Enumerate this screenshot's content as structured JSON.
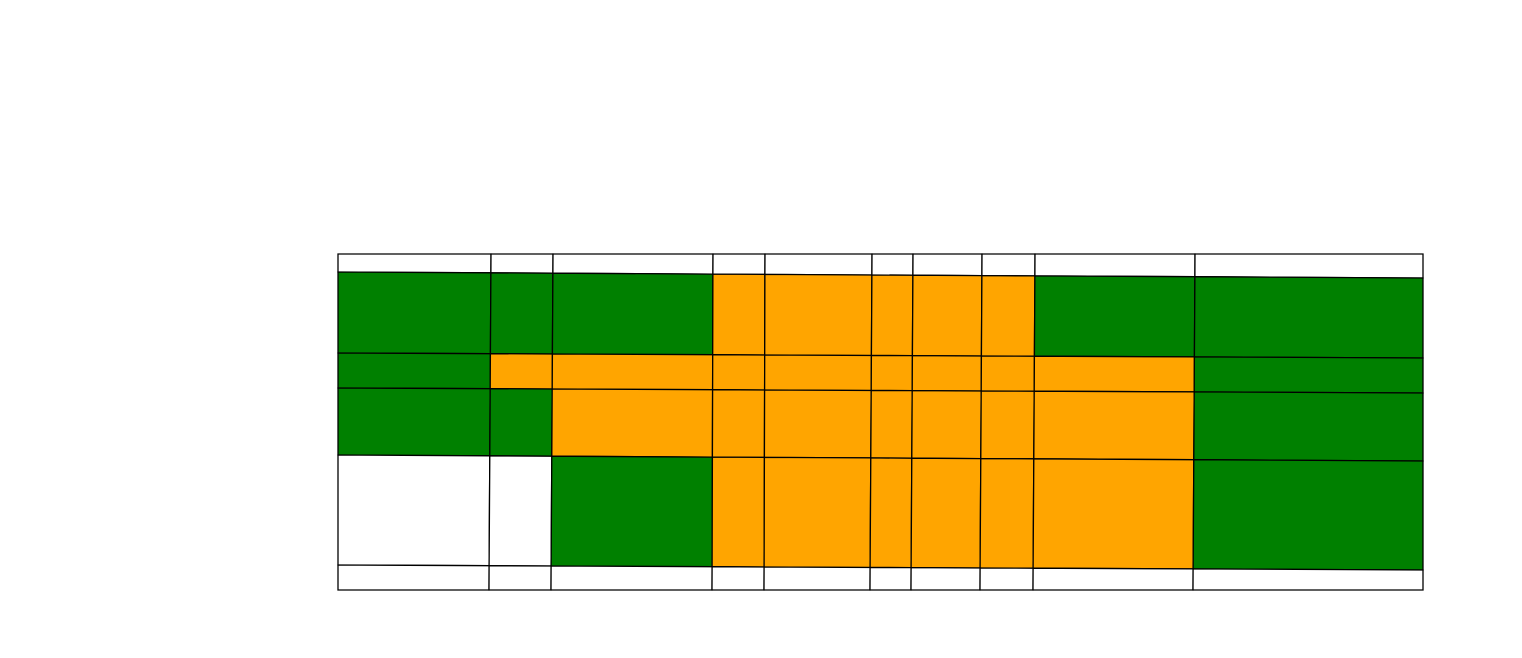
{
  "colors": {
    "green": "#008000",
    "orange": "#ffa500",
    "empty": "#ffffff",
    "line": "#000000"
  },
  "grid": {
    "column_count": 10,
    "row_count": 6,
    "cells": [
      [
        "empty",
        "empty",
        "empty",
        "empty",
        "empty",
        "empty",
        "empty",
        "empty",
        "empty",
        "empty"
      ],
      [
        "green",
        "green",
        "green",
        "orange",
        "orange",
        "orange",
        "orange",
        "orange",
        "green",
        "green"
      ],
      [
        "green",
        "orange",
        "orange",
        "orange",
        "orange",
        "orange",
        "orange",
        "orange",
        "orange",
        "green"
      ],
      [
        "green",
        "green",
        "orange",
        "orange",
        "orange",
        "orange",
        "orange",
        "orange",
        "orange",
        "green"
      ],
      [
        "empty",
        "empty",
        "green",
        "orange",
        "orange",
        "orange",
        "orange",
        "orange",
        "orange",
        "green"
      ],
      [
        "empty",
        "empty",
        "empty",
        "empty",
        "empty",
        "empty",
        "empty",
        "empty",
        "empty",
        "empty"
      ]
    ]
  }
}
